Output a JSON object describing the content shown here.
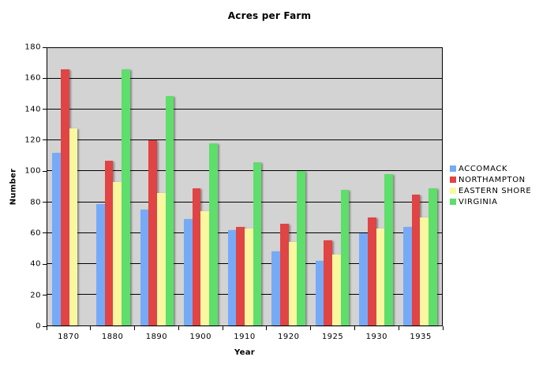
{
  "chart_data": {
    "type": "bar",
    "title": "Acres per Farm",
    "xlabel": "Year",
    "ylabel": "Number",
    "ylim": [
      0,
      180
    ],
    "ytick_step": 20,
    "grid": "horizontal",
    "legend_position": "right",
    "plot_background": "#d3d3d3",
    "axis_color": "#000000",
    "categories": [
      "1870",
      "1880",
      "1890",
      "1900",
      "1910",
      "1920",
      "1925",
      "1930",
      "1935"
    ],
    "series": [
      {
        "name": "ACCOMACK",
        "color": "#76aaf7",
        "values": [
          112,
          79,
          75,
          69,
          62,
          48,
          42,
          60,
          64
        ]
      },
      {
        "name": "NORTHAMPTON",
        "color": "#e04444",
        "values": [
          166,
          107,
          120,
          89,
          64,
          66,
          55,
          70,
          85
        ]
      },
      {
        "name": "EASTERN SHORE",
        "color": "#faf7a0",
        "values": [
          128,
          93,
          86,
          74,
          63,
          54,
          46,
          63,
          70
        ]
      },
      {
        "name": "VIRGINIA",
        "color": "#5ede6a",
        "values": [
          null,
          166,
          149,
          118,
          106,
          100,
          88,
          98,
          89
        ]
      }
    ]
  }
}
